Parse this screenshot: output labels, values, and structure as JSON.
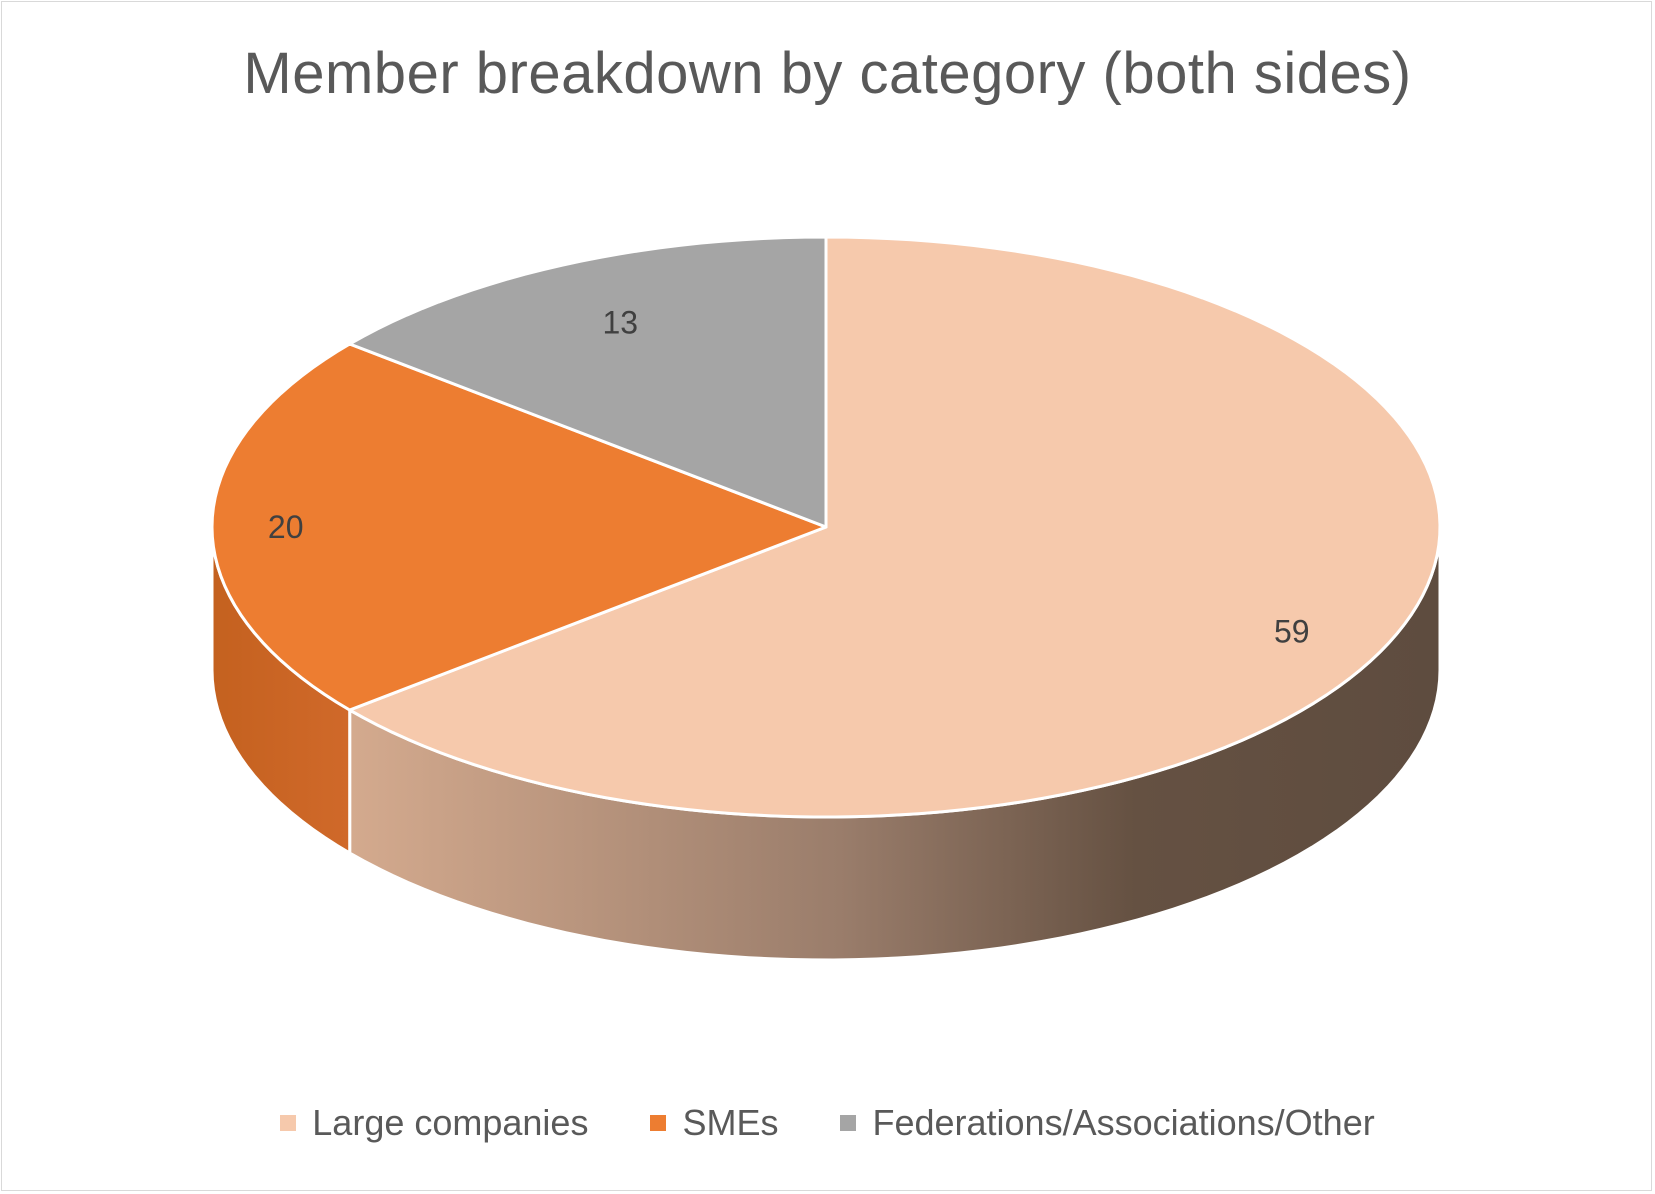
{
  "chart_data": {
    "type": "pie",
    "title": "Member breakdown by category (both sides)",
    "categories": [
      "Large companies",
      "SMEs",
      "Federations/Associations/Other"
    ],
    "values": [
      59,
      20,
      13
    ],
    "data_labels": [
      "59",
      "20",
      "13"
    ],
    "colors": [
      "#f6c9ac",
      "#ed7d31",
      "#a5a5a5"
    ],
    "side_colors": [
      "#c99f86",
      "#c86424",
      "#858585"
    ],
    "style": "3d",
    "legend": "bottom"
  }
}
